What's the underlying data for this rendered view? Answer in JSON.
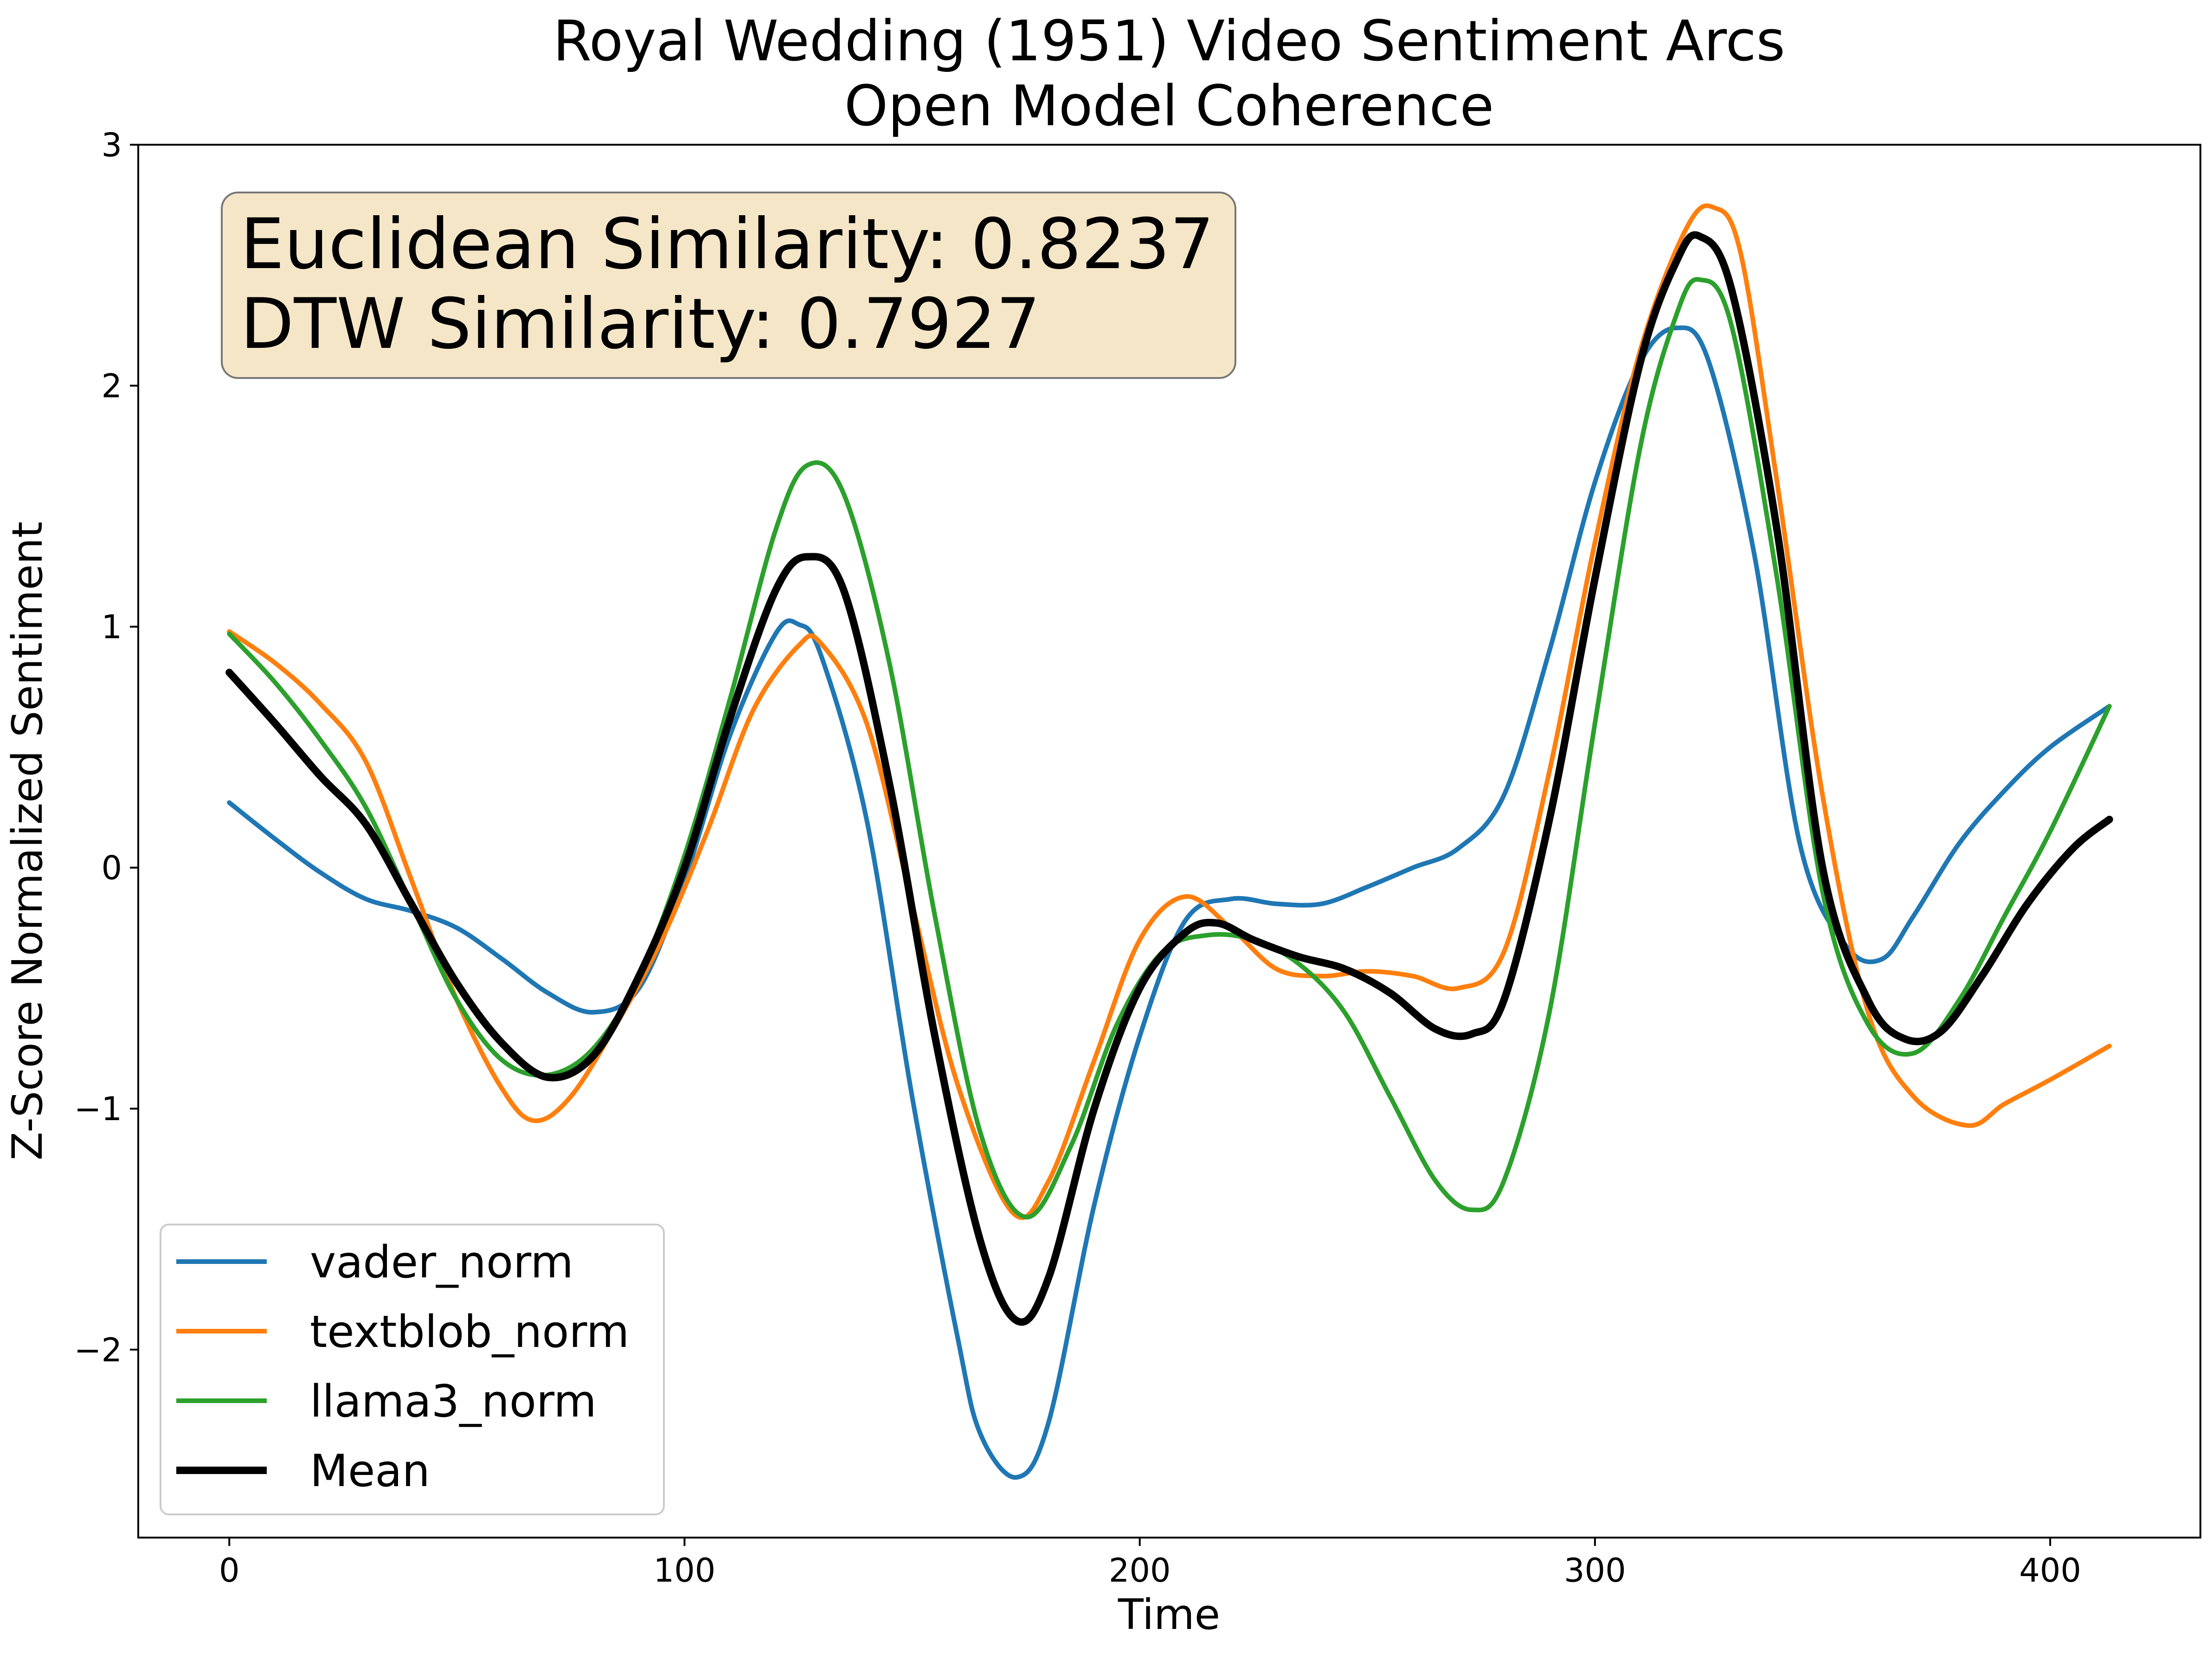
{
  "chart_data": {
    "type": "line",
    "title": [
      "Royal Wedding (1951) Video Sentiment Arcs",
      "Open Model Coherence"
    ],
    "xlabel": "Time",
    "ylabel": "Z-Score Normalized Sentiment",
    "xlim": [
      -20,
      433
    ],
    "ylim": [
      -2.78,
      3.0
    ],
    "xticks": [
      0,
      100,
      200,
      300,
      400
    ],
    "yticks": [
      -2,
      -1,
      0,
      1,
      2,
      3
    ],
    "ytick_labels": [
      "−2",
      "−1",
      "0",
      "1",
      "2",
      "3"
    ],
    "grid": false,
    "legend_position": "lower-left",
    "annotation": [
      "Euclidean Similarity: 0.8237",
      "DTW Similarity: 0.7927"
    ],
    "annotation_box_color": "#f5e6c8",
    "series": [
      {
        "name": "vader_norm",
        "color": "#1f77b4",
        "points": [
          [
            0,
            0.27
          ],
          [
            10,
            0.12
          ],
          [
            20,
            -0.02
          ],
          [
            30,
            -0.13
          ],
          [
            40,
            -0.18
          ],
          [
            50,
            -0.25
          ],
          [
            60,
            -0.38
          ],
          [
            70,
            -0.52
          ],
          [
            80,
            -0.6
          ],
          [
            90,
            -0.5
          ],
          [
            100,
            -0.05
          ],
          [
            110,
            0.55
          ],
          [
            120,
            0.97
          ],
          [
            125,
            1.01
          ],
          [
            130,
            0.88
          ],
          [
            140,
            0.2
          ],
          [
            150,
            -0.95
          ],
          [
            160,
            -1.95
          ],
          [
            165,
            -2.35
          ],
          [
            173,
            -2.53
          ],
          [
            180,
            -2.3
          ],
          [
            190,
            -1.4
          ],
          [
            200,
            -0.7
          ],
          [
            210,
            -0.22
          ],
          [
            220,
            -0.13
          ],
          [
            230,
            -0.15
          ],
          [
            240,
            -0.15
          ],
          [
            250,
            -0.08
          ],
          [
            260,
            0.0
          ],
          [
            270,
            0.08
          ],
          [
            280,
            0.3
          ],
          [
            290,
            0.9
          ],
          [
            300,
            1.6
          ],
          [
            310,
            2.1
          ],
          [
            318,
            2.24
          ],
          [
            325,
            2.1
          ],
          [
            335,
            1.3
          ],
          [
            345,
            0.1
          ],
          [
            355,
            -0.32
          ],
          [
            363,
            -0.38
          ],
          [
            370,
            -0.2
          ],
          [
            380,
            0.1
          ],
          [
            390,
            0.32
          ],
          [
            400,
            0.5
          ],
          [
            413,
            0.67
          ]
        ]
      },
      {
        "name": "textblob_norm",
        "color": "#ff7f0e",
        "points": [
          [
            0,
            0.98
          ],
          [
            10,
            0.85
          ],
          [
            20,
            0.68
          ],
          [
            30,
            0.44
          ],
          [
            40,
            -0.05
          ],
          [
            50,
            -0.55
          ],
          [
            60,
            -0.92
          ],
          [
            67,
            -1.05
          ],
          [
            75,
            -0.95
          ],
          [
            85,
            -0.65
          ],
          [
            95,
            -0.3
          ],
          [
            105,
            0.15
          ],
          [
            115,
            0.65
          ],
          [
            125,
            0.92
          ],
          [
            130,
            0.93
          ],
          [
            140,
            0.6
          ],
          [
            150,
            -0.15
          ],
          [
            160,
            -0.9
          ],
          [
            172,
            -1.43
          ],
          [
            180,
            -1.3
          ],
          [
            190,
            -0.8
          ],
          [
            200,
            -0.3
          ],
          [
            210,
            -0.12
          ],
          [
            220,
            -0.25
          ],
          [
            230,
            -0.42
          ],
          [
            240,
            -0.45
          ],
          [
            250,
            -0.43
          ],
          [
            260,
            -0.45
          ],
          [
            270,
            -0.5
          ],
          [
            280,
            -0.35
          ],
          [
            290,
            0.4
          ],
          [
            300,
            1.35
          ],
          [
            310,
            2.15
          ],
          [
            320,
            2.65
          ],
          [
            326,
            2.74
          ],
          [
            332,
            2.55
          ],
          [
            340,
            1.6
          ],
          [
            350,
            0.3
          ],
          [
            360,
            -0.6
          ],
          [
            370,
            -0.95
          ],
          [
            382,
            -1.07
          ],
          [
            390,
            -0.98
          ],
          [
            400,
            -0.88
          ],
          [
            413,
            -0.74
          ]
        ]
      },
      {
        "name": "llama3_norm",
        "color": "#2ca02c",
        "points": [
          [
            0,
            0.97
          ],
          [
            10,
            0.77
          ],
          [
            20,
            0.53
          ],
          [
            30,
            0.25
          ],
          [
            40,
            -0.15
          ],
          [
            50,
            -0.55
          ],
          [
            60,
            -0.8
          ],
          [
            70,
            -0.86
          ],
          [
            80,
            -0.75
          ],
          [
            90,
            -0.45
          ],
          [
            100,
            0.05
          ],
          [
            110,
            0.7
          ],
          [
            120,
            1.4
          ],
          [
            127,
            1.67
          ],
          [
            135,
            1.55
          ],
          [
            145,
            0.85
          ],
          [
            155,
            -0.2
          ],
          [
            165,
            -1.1
          ],
          [
            175,
            -1.45
          ],
          [
            185,
            -1.15
          ],
          [
            195,
            -0.65
          ],
          [
            205,
            -0.35
          ],
          [
            215,
            -0.28
          ],
          [
            225,
            -0.3
          ],
          [
            235,
            -0.4
          ],
          [
            245,
            -0.6
          ],
          [
            255,
            -0.95
          ],
          [
            265,
            -1.3
          ],
          [
            273,
            -1.42
          ],
          [
            280,
            -1.3
          ],
          [
            290,
            -0.6
          ],
          [
            300,
            0.6
          ],
          [
            310,
            1.75
          ],
          [
            318,
            2.3
          ],
          [
            323,
            2.44
          ],
          [
            330,
            2.25
          ],
          [
            340,
            1.2
          ],
          [
            350,
            -0.1
          ],
          [
            360,
            -0.65
          ],
          [
            370,
            -0.77
          ],
          [
            380,
            -0.55
          ],
          [
            390,
            -0.2
          ],
          [
            400,
            0.15
          ],
          [
            413,
            0.67
          ]
        ]
      },
      {
        "name": "Mean",
        "color": "#000000",
        "points": [
          [
            0,
            0.81
          ],
          [
            10,
            0.6
          ],
          [
            20,
            0.38
          ],
          [
            30,
            0.18
          ],
          [
            40,
            -0.15
          ],
          [
            50,
            -0.48
          ],
          [
            60,
            -0.73
          ],
          [
            70,
            -0.87
          ],
          [
            80,
            -0.78
          ],
          [
            90,
            -0.45
          ],
          [
            100,
            0.0
          ],
          [
            110,
            0.62
          ],
          [
            120,
            1.15
          ],
          [
            127,
            1.29
          ],
          [
            135,
            1.15
          ],
          [
            145,
            0.35
          ],
          [
            155,
            -0.7
          ],
          [
            165,
            -1.55
          ],
          [
            173,
            -1.88
          ],
          [
            180,
            -1.7
          ],
          [
            190,
            -1.0
          ],
          [
            200,
            -0.5
          ],
          [
            210,
            -0.27
          ],
          [
            217,
            -0.23
          ],
          [
            225,
            -0.3
          ],
          [
            235,
            -0.37
          ],
          [
            245,
            -0.42
          ],
          [
            255,
            -0.52
          ],
          [
            265,
            -0.67
          ],
          [
            273,
            -0.69
          ],
          [
            280,
            -0.55
          ],
          [
            290,
            0.2
          ],
          [
            300,
            1.2
          ],
          [
            310,
            2.1
          ],
          [
            318,
            2.52
          ],
          [
            323,
            2.62
          ],
          [
            330,
            2.4
          ],
          [
            340,
            1.4
          ],
          [
            350,
            0.0
          ],
          [
            360,
            -0.55
          ],
          [
            368,
            -0.71
          ],
          [
            376,
            -0.68
          ],
          [
            385,
            -0.45
          ],
          [
            395,
            -0.15
          ],
          [
            405,
            0.08
          ],
          [
            413,
            0.2
          ]
        ]
      }
    ]
  }
}
